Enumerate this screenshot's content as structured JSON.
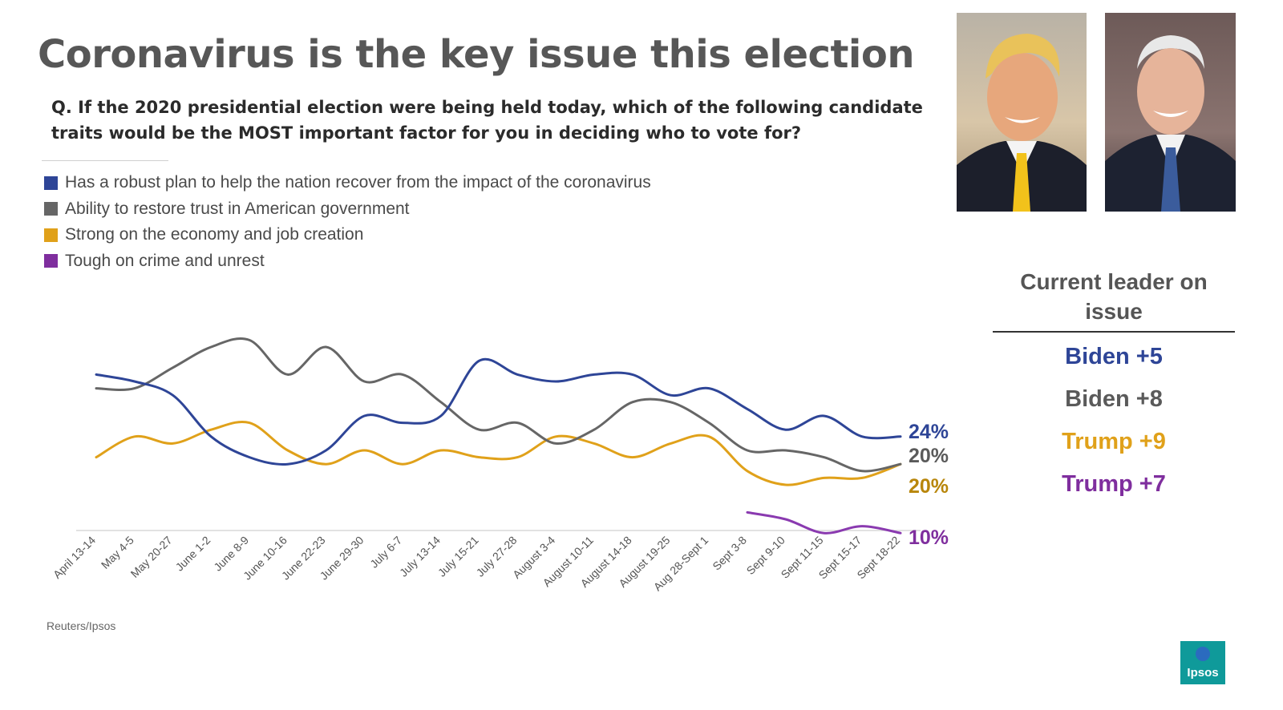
{
  "slide": {
    "title": "Coronavirus is the key issue this election",
    "question": "Q. If the 2020 presidential election were being held today, which of the following candidate traits would be the MOST important factor for you in deciding who to vote for?",
    "source": "Reuters/Ipsos",
    "logo_text": "Ipsos",
    "photos": [
      {
        "name": "trump-photo",
        "label": "Donald Trump"
      },
      {
        "name": "biden-photo",
        "label": "Joe Biden"
      }
    ]
  },
  "leader_panel": {
    "title": "Current leader on issue",
    "rows": [
      {
        "text": "Biden +5",
        "color": "#2E4597"
      },
      {
        "text": "Biden +8",
        "color": "#5A5A5A"
      },
      {
        "text": "Trump +9",
        "color": "#E0A11A"
      },
      {
        "text": "Trump +7",
        "color": "#7F2E9E"
      }
    ]
  },
  "chart_data": {
    "type": "line",
    "title": "",
    "xlabel": "",
    "ylabel": "",
    "ylim": [
      0,
      40
    ],
    "grid": false,
    "legend_position": "top-left",
    "categories": [
      "April 13-14",
      "May 4-5",
      "May 20-27",
      "June 1-2",
      "June 8-9",
      "June 10-16",
      "June 22-23",
      "June 29-30",
      "July 6-7",
      "July 13-14",
      "July 15-21",
      "July 27-28",
      "August 3-4",
      "August 10-11",
      "August 14-18",
      "August 19-25",
      "Aug 28-Sept 1",
      "Sept 3-8",
      "Sept 9-10",
      "Sept 11-15",
      "Sept 15-17",
      "Sept 18-22"
    ],
    "series": [
      {
        "name": "Has a robust plan to help the nation recover from the impact of the coronavirus",
        "color": "#2E4597",
        "end_label": "24%",
        "values": [
          33,
          32,
          30,
          24,
          21,
          20,
          22,
          27,
          26,
          27,
          35,
          33,
          32,
          33,
          33,
          30,
          31,
          28,
          25,
          27,
          24,
          24
        ]
      },
      {
        "name": "Ability to restore trust in American government",
        "color": "#666666",
        "end_label": "20%",
        "values": [
          31,
          31,
          34,
          37,
          38,
          33,
          37,
          32,
          33,
          29,
          25,
          26,
          23,
          25,
          29,
          29,
          26,
          22,
          22,
          21,
          19,
          20
        ]
      },
      {
        "name": "Strong on the economy and job creation",
        "color": "#E0A11A",
        "end_label": "20%",
        "values": [
          21,
          24,
          23,
          25,
          26,
          22,
          20,
          22,
          20,
          22,
          21,
          21,
          24,
          23,
          21,
          23,
          24,
          19,
          17,
          18,
          18,
          20
        ]
      },
      {
        "name": "Tough on crime and unrest",
        "color": "#8A3AB0",
        "end_label": "10%",
        "values": [
          null,
          null,
          null,
          null,
          null,
          null,
          null,
          null,
          null,
          null,
          null,
          null,
          null,
          null,
          null,
          null,
          null,
          13,
          12,
          10,
          11,
          10
        ]
      }
    ]
  }
}
